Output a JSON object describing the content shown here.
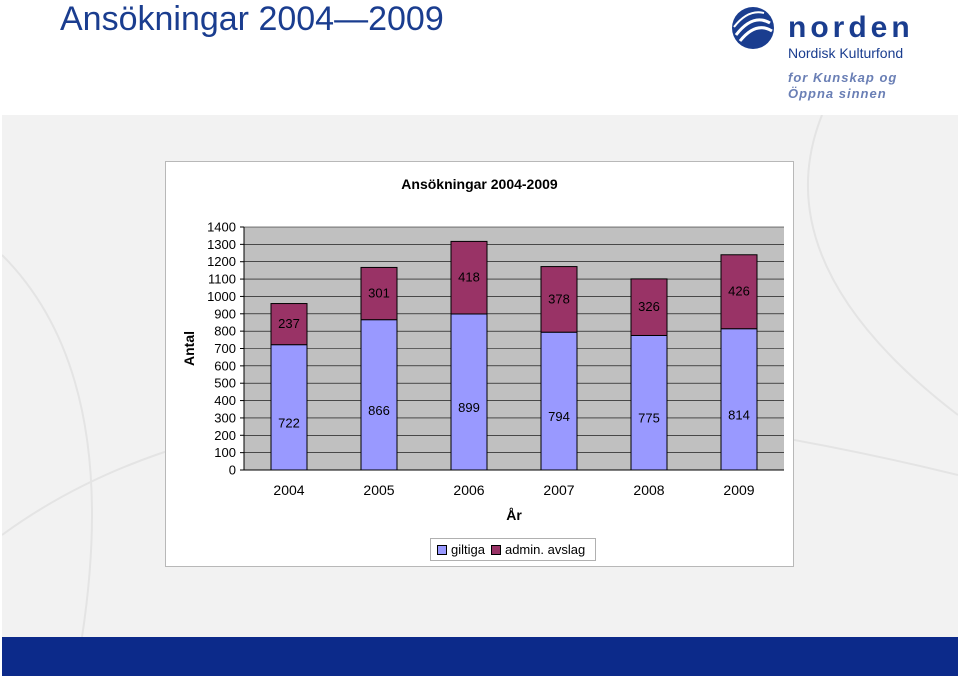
{
  "slide": {
    "title": "Ansökningar 2004—2009"
  },
  "logo": {
    "word": "norden",
    "subtitle": "Nordisk Kulturfond",
    "slogan_line1": "for Kunskap og",
    "slogan_line2": "Öppna sinnen"
  },
  "colors": {
    "title_blue": "#1a3d8f",
    "footer_blue": "#0c2a8a",
    "giltiga": "#9999ff",
    "admin": "#993366",
    "plot_bg": "#c0c0c0"
  },
  "chart_data": {
    "type": "bar",
    "stacked": true,
    "title": "Ansökningar 2004-2009",
    "xlabel": "År",
    "ylabel": "Antal",
    "ylim": [
      0,
      1400
    ],
    "yticks": [
      0,
      100,
      200,
      300,
      400,
      500,
      600,
      700,
      800,
      900,
      1000,
      1100,
      1200,
      1300,
      1400
    ],
    "categories": [
      "2004",
      "2005",
      "2006",
      "2007",
      "2008",
      "2009"
    ],
    "series": [
      {
        "name": "giltiga",
        "color": "#9999ff",
        "values": [
          722,
          866,
          899,
          794,
          775,
          814
        ]
      },
      {
        "name": "admin. avslag",
        "color": "#993366",
        "values": [
          237,
          301,
          418,
          378,
          326,
          426
        ]
      }
    ],
    "grid": true,
    "legend": "bottom"
  }
}
